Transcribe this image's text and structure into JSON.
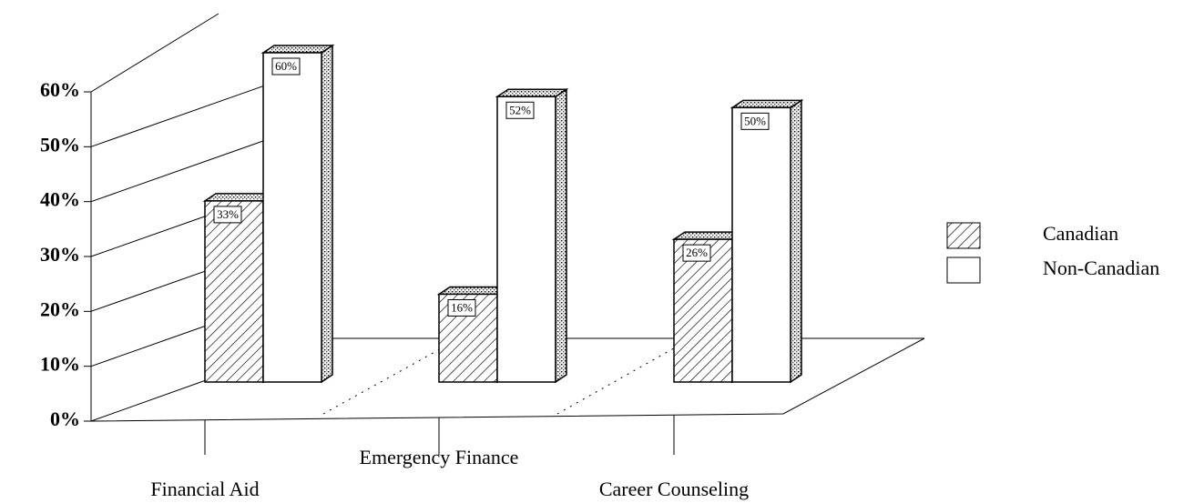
{
  "chart_data": {
    "type": "bar3d",
    "categories": [
      "Financial Aid",
      "Emergency Finance",
      "Career Counseling"
    ],
    "series": [
      {
        "name": "Canadian",
        "color": "#ffffff",
        "hatch": true,
        "values": [
          33,
          16,
          26
        ],
        "value_labels": [
          "33%",
          "16%",
          "26%"
        ]
      },
      {
        "name": "Non-Canadian",
        "color": "#ffffff",
        "hatch": false,
        "values": [
          60,
          52,
          50
        ],
        "value_labels": [
          "60%",
          "52%",
          "50%"
        ]
      }
    ],
    "ylim": [
      0,
      60
    ],
    "yticks": [
      {
        "value": 0,
        "label": "0%"
      },
      {
        "value": 10,
        "label": "10%"
      },
      {
        "value": 20,
        "label": "20%"
      },
      {
        "value": 30,
        "label": "30%"
      },
      {
        "value": 40,
        "label": "40%"
      },
      {
        "value": 50,
        "label": "50%"
      },
      {
        "value": 60,
        "label": "60%"
      }
    ],
    "grid": true,
    "legend": "right"
  }
}
